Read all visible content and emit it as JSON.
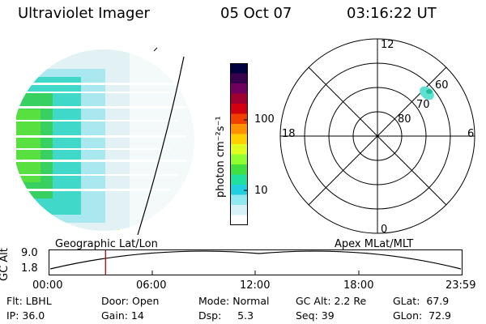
{
  "header": {
    "instrument": "Ultraviolet Imager",
    "date": "05 Oct 07",
    "time": "03:16:22 UT"
  },
  "colorbar": {
    "label": "photon cm⁻²s⁻¹",
    "ticks": [
      "100",
      "10"
    ],
    "scale": "log",
    "colors": [
      "#000040",
      "#3a0050",
      "#700060",
      "#a00030",
      "#d00010",
      "#f04000",
      "#ff9000",
      "#ffd000",
      "#e0ff20",
      "#90ff30",
      "#40e040",
      "#20e0a0",
      "#20d0e0",
      "#90e8f0",
      "#d8f0f8",
      "#ffffff"
    ]
  },
  "polar_plot": {
    "mlt_labels": {
      "top": "12",
      "left": "18",
      "right": "6",
      "bottom": "0"
    },
    "lat_labels": [
      "60",
      "70",
      "80"
    ]
  },
  "timeline": {
    "left_label": "Geographic Lat/Lon",
    "right_label": "Apex MLat/MLT",
    "axis_label": "GC Alt",
    "y_ticks": [
      "9.0",
      "1.8"
    ],
    "x_ticks": [
      "00:00",
      "06:00",
      "12:00",
      "18:00",
      "23:59"
    ],
    "marker_time": "03:16",
    "marker_color": "#c00000"
  },
  "info": {
    "row1": {
      "filter": "Flt: LBHL",
      "door": "Door: Open",
      "mode": "Mode: Normal",
      "gc_alt": "GC Alt: 2.2 Re",
      "glat": "GLat:  67.9"
    },
    "row2": {
      "ip": "IP: 36.0",
      "gain": "Gain: 14",
      "dsp": "Dsp:     5.3",
      "seq": "Seq: 39",
      "glon": "GLon:  72.9"
    }
  }
}
